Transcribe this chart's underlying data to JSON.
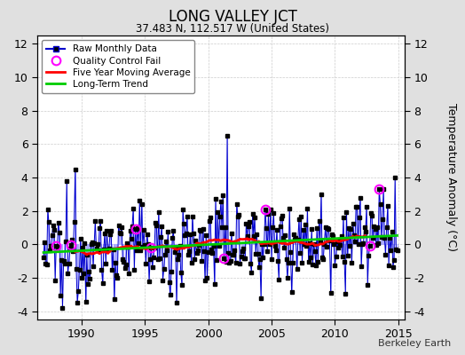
{
  "title": "LONG VALLEY JCT",
  "subtitle": "37.483 N, 112.517 W (United States)",
  "ylabel": "Temperature Anomaly (°C)",
  "watermark": "Berkeley Earth",
  "xlim": [
    1986.5,
    2015.5
  ],
  "ylim": [
    -4.5,
    12.5
  ],
  "yticks": [
    -4,
    -2,
    0,
    2,
    4,
    6,
    8,
    10,
    12
  ],
  "xticks": [
    1990,
    1995,
    2000,
    2005,
    2010,
    2015
  ],
  "bg_color": "#e0e0e0",
  "plot_bg_color": "#ffffff",
  "raw_vline_color": "#aaaaff",
  "raw_line_color": "#0000cc",
  "raw_marker_color": "#000000",
  "qc_fail_color": "#ff00ff",
  "moving_avg_color": "#ff0000",
  "trend_color": "#00cc00",
  "seed": 12345,
  "years_start": 1987,
  "years_end": 2015
}
